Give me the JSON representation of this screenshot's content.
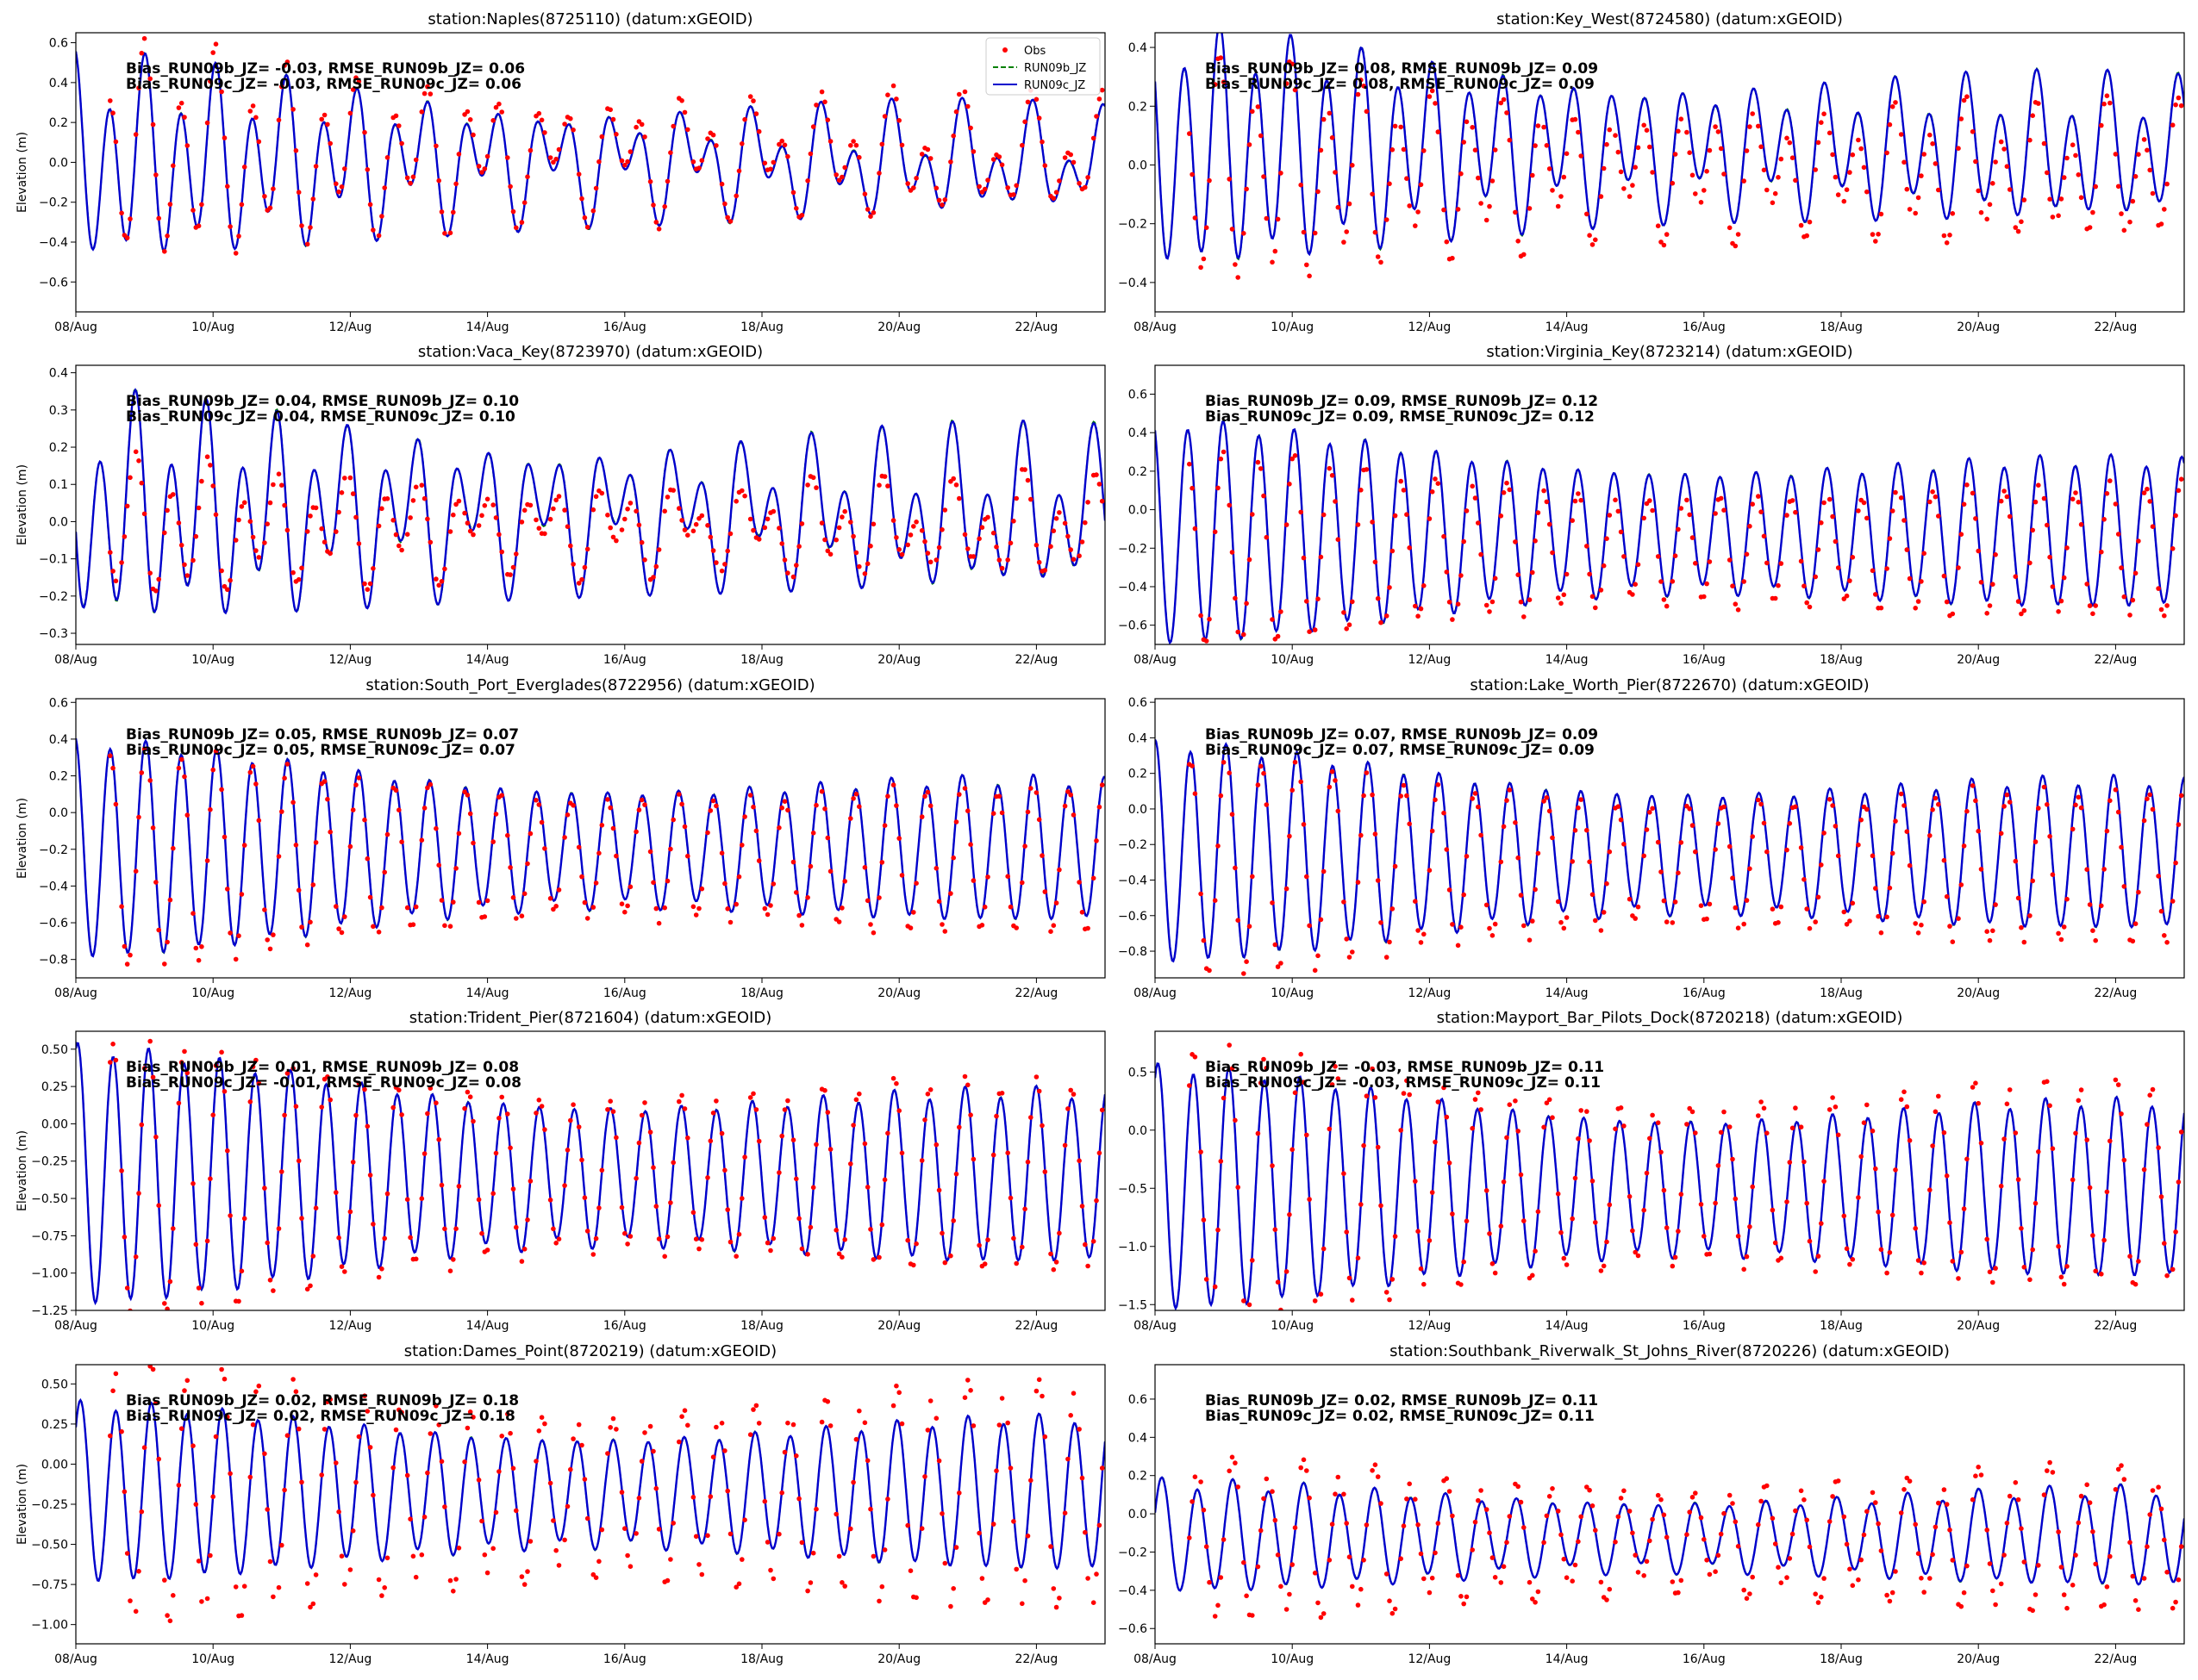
{
  "figure": {
    "legend": {
      "position": "upper right of first panel",
      "entries": [
        {
          "label": "Obs",
          "style": "red dots",
          "color": "#ff0000"
        },
        {
          "label": "RUN09b_JZ",
          "style": "dashed line",
          "color": "#008000"
        },
        {
          "label": "RUN09c_JZ",
          "style": "solid line",
          "color": "#0000cc"
        }
      ]
    },
    "colors": {
      "obs": "#ff0000",
      "run09b": "#008000",
      "run09c": "#0000cc"
    }
  },
  "chart_data": [
    {
      "type": "line",
      "title": "station:Naples(8725110) (datum:xGEOID)",
      "ylabel": "Elevation (m)",
      "x_ticks": [
        "08/Aug",
        "10/Aug",
        "12/Aug",
        "14/Aug",
        "16/Aug",
        "18/Aug",
        "20/Aug",
        "22/Aug"
      ],
      "xlim_days": [
        0,
        15
      ],
      "ylim": [
        -0.75,
        0.65
      ],
      "yticks": [
        -0.6,
        -0.4,
        -0.2,
        0.0,
        0.2,
        0.4,
        0.6
      ],
      "ytick_labels": [
        "−0.6",
        "−0.4",
        "−0.2",
        "0.0",
        "0.2",
        "0.4",
        "0.6"
      ],
      "stats": [
        "Bias_RUN09b_JZ= -0.03, RMSE_RUN09b_JZ=  0.06",
        "Bias_RUN09c_JZ= -0.03, RMSE_RUN09c_JZ=  0.06"
      ],
      "series": [
        {
          "name": "Obs"
        },
        {
          "name": "RUN09b_JZ"
        },
        {
          "name": "RUN09c_JZ"
        }
      ],
      "model": {
        "mean": 0.0,
        "m2_start": 0.35,
        "m2_end": 0.12,
        "k1": 0.15,
        "phase": 0.3
      },
      "obs_offset": 0.03,
      "obs_amp_factor": 1.1
    },
    {
      "type": "line",
      "title": "station:Key_West(8724580) (datum:xGEOID)",
      "ylabel": "",
      "x_ticks": [
        "08/Aug",
        "10/Aug",
        "12/Aug",
        "14/Aug",
        "16/Aug",
        "18/Aug",
        "20/Aug",
        "22/Aug"
      ],
      "xlim_days": [
        0,
        15
      ],
      "ylim": [
        -0.5,
        0.45
      ],
      "yticks": [
        -0.4,
        -0.2,
        0.0,
        0.2,
        0.4
      ],
      "ytick_labels": [
        "−0.4",
        "−0.2",
        "0.0",
        "0.2",
        "0.4"
      ],
      "stats": [
        "Bias_RUN09b_JZ=  0.08, RMSE_RUN09b_JZ=  0.09",
        "Bias_RUN09c_JZ=  0.08, RMSE_RUN09c_JZ=  0.09"
      ],
      "series": [
        {
          "name": "Obs"
        },
        {
          "name": "RUN09b_JZ"
        },
        {
          "name": "RUN09c_JZ"
        }
      ],
      "model": {
        "mean": 0.05,
        "m2_start": 0.3,
        "m2_end": 0.15,
        "k1": 0.08,
        "phase": 1.1
      },
      "obs_offset": -0.08,
      "obs_amp_factor": 0.95
    },
    {
      "type": "line",
      "title": "station:Vaca_Key(8723970) (datum:xGEOID)",
      "ylabel": "Elevation (m)",
      "x_ticks": [
        "08/Aug",
        "10/Aug",
        "12/Aug",
        "14/Aug",
        "16/Aug",
        "18/Aug",
        "20/Aug",
        "22/Aug"
      ],
      "xlim_days": [
        0,
        15
      ],
      "ylim": [
        -0.33,
        0.42
      ],
      "yticks": [
        -0.3,
        -0.2,
        -0.1,
        0.0,
        0.1,
        0.2,
        0.3,
        0.4
      ],
      "ytick_labels": [
        "−0.3",
        "−0.2",
        "−0.1",
        "0.0",
        "0.1",
        "0.2",
        "0.3",
        "0.4"
      ],
      "stats": [
        "Bias_RUN09b_JZ=  0.04, RMSE_RUN09b_JZ=  0.10",
        "Bias_RUN09c_JZ=  0.04, RMSE_RUN09c_JZ=  0.10"
      ],
      "series": [
        {
          "name": "Obs"
        },
        {
          "name": "RUN09b_JZ"
        },
        {
          "name": "RUN09c_JZ"
        }
      ],
      "model": {
        "mean": 0.02,
        "m2_start": 0.2,
        "m2_end": 0.12,
        "k1": 0.1,
        "phase": 2.0
      },
      "obs_offset": -0.04,
      "obs_amp_factor": 0.6,
      "obs_phase_lag": 0.5
    },
    {
      "type": "line",
      "title": "station:Virginia_Key(8723214) (datum:xGEOID)",
      "ylabel": "",
      "x_ticks": [
        "08/Aug",
        "10/Aug",
        "12/Aug",
        "14/Aug",
        "16/Aug",
        "18/Aug",
        "20/Aug",
        "22/Aug"
      ],
      "xlim_days": [
        0,
        15
      ],
      "ylim": [
        -0.7,
        0.75
      ],
      "yticks": [
        -0.6,
        -0.4,
        -0.2,
        0.0,
        0.2,
        0.4,
        0.6
      ],
      "ytick_labels": [
        "−0.6",
        "−0.4",
        "−0.2",
        "0.0",
        "0.2",
        "0.4",
        "0.6"
      ],
      "stats": [
        "Bias_RUN09b_JZ=  0.09, RMSE_RUN09b_JZ=  0.12",
        "Bias_RUN09c_JZ=  0.09, RMSE_RUN09c_JZ=  0.12"
      ],
      "series": [
        {
          "name": "Obs"
        },
        {
          "name": "RUN09b_JZ"
        },
        {
          "name": "RUN09c_JZ"
        }
      ],
      "model": {
        "mean": -0.12,
        "m2_start": 0.47,
        "m2_end": 0.3,
        "k1": 0.03,
        "phase": 0.5
      },
      "obs_offset": -0.09,
      "obs_amp_factor": 0.9
    },
    {
      "type": "line",
      "title": "station:South_Port_Everglades(8722956) (datum:xGEOID)",
      "ylabel": "Elevation (m)",
      "x_ticks": [
        "08/Aug",
        "10/Aug",
        "12/Aug",
        "14/Aug",
        "16/Aug",
        "18/Aug",
        "20/Aug",
        "22/Aug"
      ],
      "xlim_days": [
        0,
        15
      ],
      "ylim": [
        -0.9,
        0.62
      ],
      "yticks": [
        -0.8,
        -0.6,
        -0.4,
        -0.2,
        0.0,
        0.2,
        0.4,
        0.6
      ],
      "ytick_labels": [
        "−0.8",
        "−0.6",
        "−0.4",
        "−0.2",
        "0.0",
        "0.2",
        "0.4",
        "0.6"
      ],
      "stats": [
        "Bias_RUN09b_JZ=  0.05, RMSE_RUN09b_JZ=  0.07",
        "Bias_RUN09c_JZ=  0.05, RMSE_RUN09c_JZ=  0.07"
      ],
      "series": [
        {
          "name": "Obs"
        },
        {
          "name": "RUN09b_JZ"
        },
        {
          "name": "RUN09c_JZ"
        }
      ],
      "model": {
        "mean": -0.2,
        "m2_start": 0.48,
        "m2_end": 0.3,
        "k1": 0.03,
        "phase": 0.2
      },
      "obs_offset": -0.05,
      "obs_amp_factor": 1.05
    },
    {
      "type": "line",
      "title": "station:Lake_Worth_Pier(8722670) (datum:xGEOID)",
      "ylabel": "",
      "x_ticks": [
        "08/Aug",
        "10/Aug",
        "12/Aug",
        "14/Aug",
        "16/Aug",
        "18/Aug",
        "20/Aug",
        "22/Aug"
      ],
      "xlim_days": [
        0,
        15
      ],
      "ylim": [
        -0.95,
        0.62
      ],
      "yticks": [
        -0.8,
        -0.6,
        -0.4,
        -0.2,
        0.0,
        0.2,
        0.4,
        0.6
      ],
      "ytick_labels": [
        "−0.8",
        "−0.6",
        "−0.4",
        "−0.2",
        "0.0",
        "0.2",
        "0.4",
        "0.6"
      ],
      "stats": [
        "Bias_RUN09b_JZ=  0.07, RMSE_RUN09b_JZ=  0.09",
        "Bias_RUN09c_JZ=  0.07, RMSE_RUN09c_JZ=  0.09"
      ],
      "series": [
        {
          "name": "Obs"
        },
        {
          "name": "RUN09b_JZ"
        },
        {
          "name": "RUN09c_JZ"
        }
      ],
      "model": {
        "mean": -0.25,
        "m2_start": 0.5,
        "m2_end": 0.33,
        "k1": 0.03,
        "phase": 0.0
      },
      "obs_offset": -0.07,
      "obs_amp_factor": 1.05
    },
    {
      "type": "line",
      "title": "station:Trident_Pier(8721604) (datum:xGEOID)",
      "ylabel": "Elevation (m)",
      "x_ticks": [
        "08/Aug",
        "10/Aug",
        "12/Aug",
        "14/Aug",
        "16/Aug",
        "18/Aug",
        "20/Aug",
        "22/Aug"
      ],
      "xlim_days": [
        0,
        15
      ],
      "ylim": [
        -1.25,
        0.62
      ],
      "yticks": [
        -1.25,
        -1.0,
        -0.75,
        -0.5,
        -0.25,
        0.0,
        0.25,
        0.5
      ],
      "ytick_labels": [
        "−1.25",
        "−1.00",
        "−0.75",
        "−0.50",
        "−0.25",
        "0.00",
        "0.25",
        "0.50"
      ],
      "stats": [
        "Bias_RUN09b_JZ=  0.01, RMSE_RUN09b_JZ=  0.08",
        "Bias_RUN09c_JZ= -0.01, RMSE_RUN09c_JZ=  0.08"
      ],
      "series": [
        {
          "name": "Obs"
        },
        {
          "name": "RUN09b_JZ"
        },
        {
          "name": "RUN09c_JZ"
        }
      ],
      "model": {
        "mean": -0.35,
        "m2_start": 0.7,
        "m2_end": 0.45,
        "k1": 0.04,
        "phase": -0.3
      },
      "obs_offset": 0.0,
      "obs_amp_factor": 1.12
    },
    {
      "type": "line",
      "title": "station:Mayport_Bar_Pilots_Dock(8720218) (datum:xGEOID)",
      "ylabel": "",
      "x_ticks": [
        "08/Aug",
        "10/Aug",
        "12/Aug",
        "14/Aug",
        "16/Aug",
        "18/Aug",
        "20/Aug",
        "22/Aug"
      ],
      "xlim_days": [
        0,
        15
      ],
      "ylim": [
        -1.55,
        0.85
      ],
      "yticks": [
        -1.5,
        -1.0,
        -0.5,
        0.0,
        0.5
      ],
      "ytick_labels": [
        "−1.5",
        "−1.0",
        "−0.5",
        "0.0",
        "0.5"
      ],
      "stats": [
        "Bias_RUN09b_JZ= -0.03, RMSE_RUN09b_JZ=  0.11",
        "Bias_RUN09c_JZ= -0.03, RMSE_RUN09c_JZ=  0.11"
      ],
      "series": [
        {
          "name": "Obs"
        },
        {
          "name": "RUN09b_JZ"
        },
        {
          "name": "RUN09c_JZ"
        }
      ],
      "model": {
        "mean": -0.5,
        "m2_start": 0.85,
        "m2_end": 0.6,
        "k1": 0.04,
        "phase": -0.5
      },
      "obs_offset": 0.03,
      "obs_amp_factor": 1.18
    },
    {
      "type": "line",
      "title": "station:Dames_Point(8720219) (datum:xGEOID)",
      "ylabel": "Elevation (m)",
      "x_ticks": [
        "08/Aug",
        "10/Aug",
        "12/Aug",
        "14/Aug",
        "16/Aug",
        "18/Aug",
        "20/Aug",
        "22/Aug"
      ],
      "xlim_days": [
        0,
        15
      ],
      "ylim": [
        -1.12,
        0.62
      ],
      "yticks": [
        -1.0,
        -0.75,
        -0.5,
        -0.25,
        0.0,
        0.25,
        0.5
      ],
      "ytick_labels": [
        "−1.00",
        "−0.75",
        "−0.50",
        "−0.25",
        "0.00",
        "0.25",
        "0.50"
      ],
      "stats": [
        "Bias_RUN09b_JZ=  0.02, RMSE_RUN09b_JZ=  0.18",
        "Bias_RUN09c_JZ=  0.02, RMSE_RUN09c_JZ=  0.18"
      ],
      "series": [
        {
          "name": "Obs"
        },
        {
          "name": "RUN09b_JZ"
        },
        {
          "name": "RUN09c_JZ"
        }
      ],
      "model": {
        "mean": -0.18,
        "m2_start": 0.45,
        "m2_end": 0.38,
        "k1": 0.03,
        "phase": -0.8
      },
      "obs_offset": -0.02,
      "obs_amp_factor": 1.5
    },
    {
      "type": "line",
      "title": "station:Southbank_Riverwalk_St_Johns_River(8720226) (datum:xGEOID)",
      "ylabel": "",
      "x_ticks": [
        "08/Aug",
        "10/Aug",
        "12/Aug",
        "14/Aug",
        "16/Aug",
        "18/Aug",
        "20/Aug",
        "22/Aug"
      ],
      "xlim_days": [
        0,
        15
      ],
      "ylim": [
        -0.68,
        0.78
      ],
      "yticks": [
        -0.6,
        -0.4,
        -0.2,
        0.0,
        0.2,
        0.4,
        0.6
      ],
      "ytick_labels": [
        "−0.6",
        "−0.4",
        "−0.2",
        "0.0",
        "0.2",
        "0.4",
        "0.6"
      ],
      "stats": [
        "Bias_RUN09b_JZ=  0.02, RMSE_RUN09b_JZ=  0.11",
        "Bias_RUN09c_JZ=  0.02, RMSE_RUN09c_JZ=  0.11"
      ],
      "series": [
        {
          "name": "Obs"
        },
        {
          "name": "RUN09b_JZ"
        },
        {
          "name": "RUN09c_JZ"
        }
      ],
      "model": {
        "mean": -0.12,
        "m2_start": 0.23,
        "m2_end": 0.2,
        "k1": 0.03,
        "phase": -1.2
      },
      "obs_offset": -0.02,
      "obs_amp_factor": 1.5
    }
  ]
}
